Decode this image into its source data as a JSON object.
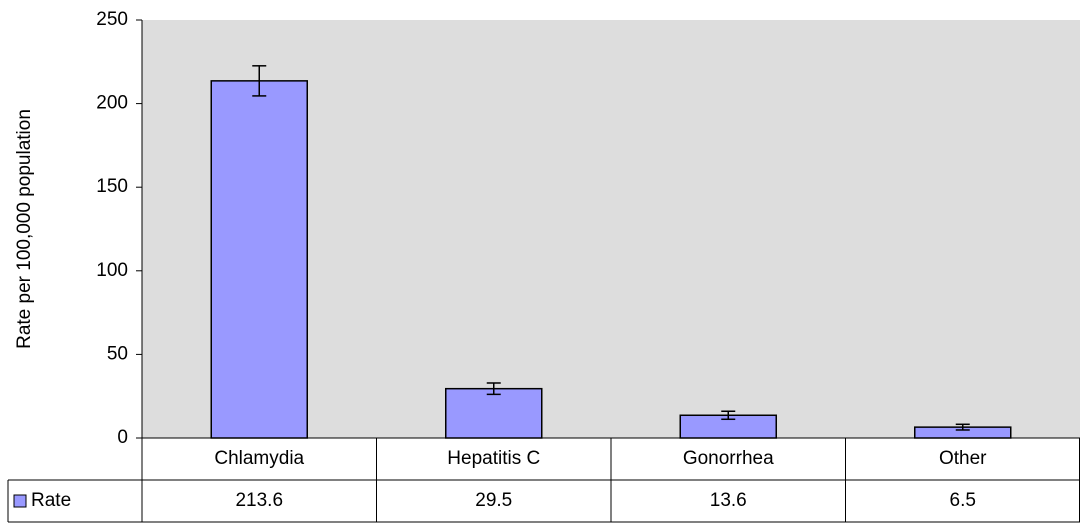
{
  "chart_data": {
    "type": "bar",
    "y_label": "Rate per 100,000 population",
    "categories": [
      "Chlamydia",
      "Hepatitis C",
      "Gonorrhea",
      "Other"
    ],
    "series": [
      {
        "name": "Rate",
        "color": "#9999ff",
        "values": [
          213.6,
          29.5,
          13.6,
          6.5
        ],
        "errors": [
          9,
          3.4,
          2.4,
          1.7
        ]
      }
    ],
    "ylim": [
      0,
      250
    ],
    "yticks": [
      0,
      50,
      100,
      150,
      200,
      250
    ],
    "grid": false,
    "plot_background": "#dddddd",
    "data_table": true
  }
}
